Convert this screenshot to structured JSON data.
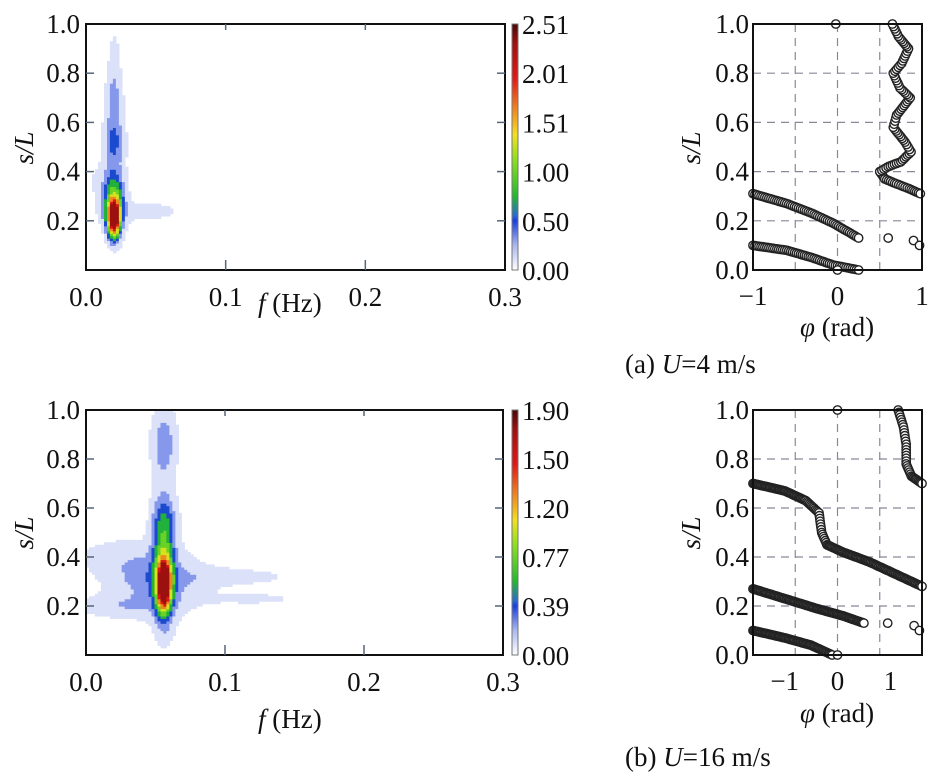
{
  "chart_data": [
    {
      "type": "heatmap",
      "panel": "a",
      "title": "",
      "xlabel_var": "f",
      "xlabel_unit": " (Hz)",
      "ylabel": "s/L",
      "xlim": [
        0.0,
        0.3
      ],
      "ylim": [
        0.0,
        1.0
      ],
      "xticks": [
        "0.0",
        "0.1",
        "0.2",
        "0.3"
      ],
      "yticks": [
        "0.2",
        "0.4",
        "0.6",
        "0.8",
        "1.0"
      ],
      "colorbar": {
        "ticks": [
          "0.00",
          "0.50",
          "1.00",
          "1.51",
          "2.01",
          "2.51"
        ],
        "range": [
          0.0,
          2.51
        ]
      },
      "blobs": [
        {
          "f": 0.02,
          "s": 0.21,
          "sf": 0.003,
          "ss": 0.05,
          "v": 2.51
        },
        {
          "f": 0.02,
          "s": 0.28,
          "sf": 0.005,
          "ss": 0.08,
          "v": 1.1
        },
        {
          "f": 0.02,
          "s": 0.52,
          "sf": 0.005,
          "ss": 0.07,
          "v": 0.55
        },
        {
          "f": 0.02,
          "s": 0.7,
          "sf": 0.004,
          "ss": 0.08,
          "v": 0.4
        },
        {
          "f": 0.02,
          "s": 0.88,
          "sf": 0.003,
          "ss": 0.07,
          "v": 0.15
        },
        {
          "f": 0.04,
          "s": 0.24,
          "sf": 0.02,
          "ss": 0.03,
          "v": 0.18
        },
        {
          "f": 0.01,
          "s": 0.36,
          "sf": 0.01,
          "ss": 0.06,
          "v": 0.12
        }
      ],
      "caption_prefix": "(a) ",
      "caption_var": "U",
      "caption_rest": "=4 m/s"
    },
    {
      "type": "scatter",
      "panel": "a",
      "xlabel_var": "φ",
      "xlabel_unit": " (rad)",
      "ylabel": "s/L",
      "xlim": [
        -1,
        1
      ],
      "ylim": [
        0.0,
        1.0
      ],
      "xticks": [
        "−1",
        "0",
        "1"
      ],
      "xtick_values": [
        -1,
        0,
        1
      ],
      "yticks": [
        "0.0",
        "0.2",
        "0.4",
        "0.6",
        "0.8",
        "1.0"
      ],
      "xgrid": [
        -0.5,
        0,
        0.5
      ],
      "series": [
        {
          "name": "branch1",
          "x": [
            -1,
            -0.6,
            -0.3,
            -0.05,
            0.1,
            0.25
          ],
          "y": [
            0.1,
            0.08,
            0.05,
            0.02,
            0.01,
            0.0
          ]
        },
        {
          "name": "branch2",
          "x": [
            -1,
            -0.6,
            -0.3,
            -0.05,
            0.1,
            0.25
          ],
          "y": [
            0.31,
            0.27,
            0.23,
            0.19,
            0.16,
            0.13
          ]
        },
        {
          "name": "branch3",
          "x": [
            0.5,
            0.56,
            0.7,
            0.85,
            0.98
          ],
          "y": [
            0.4,
            0.37,
            0.35,
            0.33,
            0.31
          ]
        },
        {
          "name": "branch4",
          "x": [
            0.5,
            0.6,
            0.75,
            0.87,
            0.8,
            0.66,
            0.7,
            0.86,
            0.74,
            0.66,
            0.76,
            0.84,
            0.72,
            0.65
          ],
          "y": [
            0.4,
            0.42,
            0.44,
            0.48,
            0.52,
            0.58,
            0.63,
            0.7,
            0.74,
            0.8,
            0.84,
            0.9,
            0.95,
            1.0
          ]
        },
        {
          "name": "isolated",
          "x": [
            0.6,
            0.9,
            0.97,
            -0.02,
            0.0
          ],
          "y": [
            0.13,
            0.12,
            0.1,
            1.0,
            0.0
          ]
        }
      ]
    },
    {
      "type": "heatmap",
      "panel": "b",
      "xlabel_var": "f",
      "xlabel_unit": " (Hz)",
      "ylabel": "s/L",
      "xlim": [
        0.0,
        0.3
      ],
      "ylim": [
        0.0,
        1.0
      ],
      "xticks": [
        "0.0",
        "0.1",
        "0.2",
        "0.3"
      ],
      "yticks": [
        "0.2",
        "0.4",
        "0.6",
        "0.8",
        "1.0"
      ],
      "colorbar": {
        "ticks": [
          "0.00",
          "0.39",
          "0.77",
          "1.20",
          "1.50",
          "1.90"
        ],
        "range": [
          0.0,
          1.9
        ]
      },
      "blobs": [
        {
          "f": 0.056,
          "s": 0.29,
          "sf": 0.003,
          "ss": 0.06,
          "v": 1.9
        },
        {
          "f": 0.056,
          "s": 0.32,
          "sf": 0.005,
          "ss": 0.13,
          "v": 0.9
        },
        {
          "f": 0.056,
          "s": 0.55,
          "sf": 0.006,
          "ss": 0.08,
          "v": 0.45
        },
        {
          "f": 0.056,
          "s": 0.86,
          "sf": 0.006,
          "ss": 0.1,
          "v": 0.35
        },
        {
          "f": 0.05,
          "s": 0.3,
          "sf": 0.022,
          "ss": 0.09,
          "v": 0.3
        },
        {
          "f": 0.1,
          "s": 0.32,
          "sf": 0.04,
          "ss": 0.03,
          "v": 0.12
        },
        {
          "f": 0.12,
          "s": 0.23,
          "sf": 0.03,
          "ss": 0.02,
          "v": 0.1
        },
        {
          "f": 0.02,
          "s": 0.4,
          "sf": 0.02,
          "ss": 0.05,
          "v": 0.12
        },
        {
          "f": 0.02,
          "s": 0.2,
          "sf": 0.02,
          "ss": 0.03,
          "v": 0.15
        }
      ],
      "caption_prefix": "(b) ",
      "caption_var": "U",
      "caption_rest": "=16 m/s"
    },
    {
      "type": "scatter",
      "panel": "b",
      "xlabel_var": "φ",
      "xlabel_unit": " (rad)",
      "ylabel": "s/L",
      "xlim": [
        -1.6,
        1.6
      ],
      "ylim": [
        0.0,
        1.0
      ],
      "xticks": [
        "−1",
        "0",
        "1"
      ],
      "xtick_values": [
        -1,
        0,
        1
      ],
      "yticks": [
        "0.0",
        "0.2",
        "0.4",
        "0.6",
        "0.8",
        "1.0"
      ],
      "xgrid": [
        -0.8,
        0,
        0.8
      ],
      "series": [
        {
          "name": "branch1",
          "x": [
            -1.6,
            -1.0,
            -0.5,
            -0.1
          ],
          "y": [
            0.1,
            0.07,
            0.04,
            0.0
          ]
        },
        {
          "name": "branch2",
          "x": [
            -1.6,
            -1.0,
            -0.4,
            0.1,
            0.5
          ],
          "y": [
            0.27,
            0.23,
            0.19,
            0.16,
            0.13
          ]
        },
        {
          "name": "branch3",
          "x": [
            -1.6,
            -1.0,
            -0.6,
            -0.35,
            -0.3,
            -0.2,
            0.1,
            0.6,
            1.1,
            1.6
          ],
          "y": [
            0.7,
            0.67,
            0.63,
            0.58,
            0.5,
            0.45,
            0.42,
            0.38,
            0.33,
            0.28
          ]
        },
        {
          "name": "branch4",
          "x": [
            1.15,
            1.25,
            1.3,
            1.3,
            1.4,
            1.6
          ],
          "y": [
            1.0,
            0.93,
            0.86,
            0.78,
            0.73,
            0.7
          ]
        },
        {
          "name": "isolated",
          "x": [
            0.95,
            1.45,
            1.55,
            0.0,
            0.0
          ],
          "y": [
            0.13,
            0.12,
            0.1,
            1.0,
            0.0
          ]
        }
      ]
    }
  ]
}
